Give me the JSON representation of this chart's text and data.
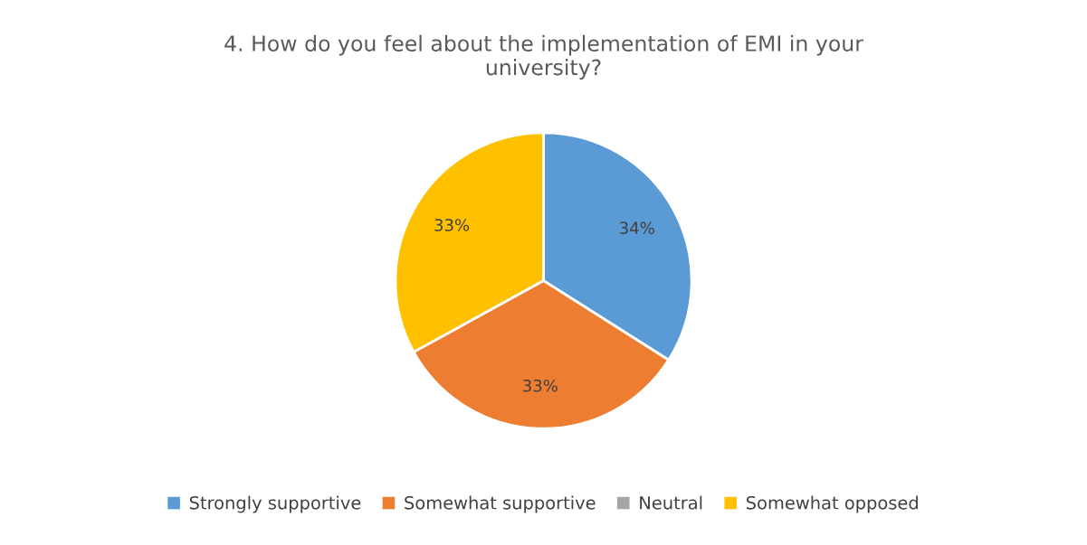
{
  "chart_data": {
    "type": "pie",
    "title": "4. How do you feel about the implementation of EMI in your university?",
    "categories": [
      "Strongly supportive",
      "Somewhat supportive",
      "Neutral",
      "Somewhat opposed"
    ],
    "values": [
      34,
      33,
      0,
      33
    ],
    "value_labels": [
      "34%",
      "33%",
      null,
      "33%"
    ],
    "colors": [
      "#5b9bd5",
      "#ed7d31",
      "#a5a5a5",
      "#ffc000"
    ],
    "legend": "bottom"
  }
}
